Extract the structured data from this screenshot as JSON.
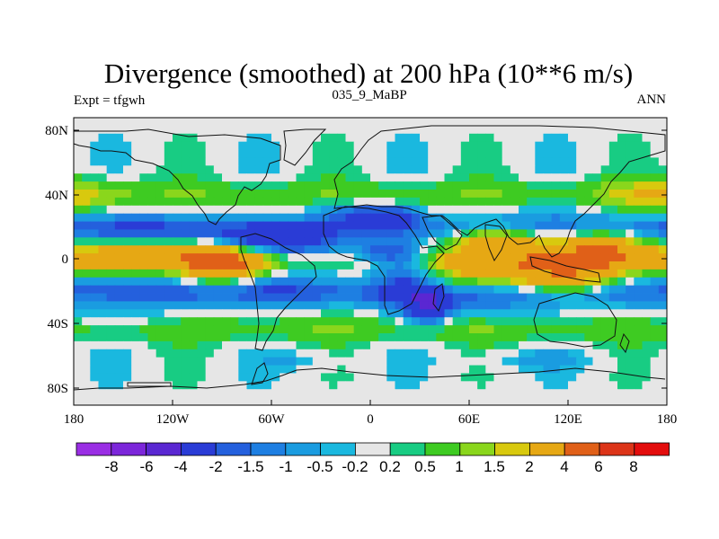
{
  "chart_data": {
    "type": "heatmap",
    "title": "Divergence (smoothed) at 200 hPa (10**6 m/s)",
    "left_label": "Expt = tfgwh",
    "center_label": "035_9_MaBP",
    "right_label": "ANN",
    "x_ticks": [
      "180",
      "120W",
      "60W",
      "0",
      "60E",
      "120E",
      "180"
    ],
    "x_tick_values": [
      -180,
      -120,
      -60,
      0,
      60,
      120,
      180
    ],
    "y_ticks": [
      "80N",
      "40N",
      "0",
      "40S",
      "80S"
    ],
    "y_tick_values": [
      80,
      40,
      0,
      -40,
      -80
    ],
    "xlim": [
      -180,
      180
    ],
    "ylim": [
      -90,
      90
    ],
    "colorbar": {
      "labels": [
        "-8",
        "-6",
        "-4",
        "-2",
        "-1.5",
        "-1",
        "-0.5",
        "-0.2",
        "0.2",
        "0.5",
        "1",
        "1.5",
        "2",
        "4",
        "6",
        "8"
      ],
      "levels": [
        -8,
        -6,
        -4,
        -2,
        -1.5,
        -1,
        -0.5,
        -0.2,
        0.2,
        0.5,
        1,
        1.5,
        2,
        4,
        6,
        8
      ],
      "colors": [
        "#9A2EE4",
        "#7C26DA",
        "#5A27D2",
        "#2A3CD6",
        "#2460DD",
        "#1E7FE2",
        "#1A9CE0",
        "#1AB8DF",
        "#E6E6E6",
        "#18CC83",
        "#3ECB22",
        "#8AD61C",
        "#D8C90E",
        "#E6A814",
        "#E06018",
        "#DC3418",
        "#E30D0D"
      ]
    },
    "anomalies": [
      {
        "lon": -65,
        "lat": 12,
        "value": -3.5,
        "rx": 35,
        "ry": 10
      },
      {
        "lon": -90,
        "lat": 0,
        "value": 5.0,
        "rx": 30,
        "ry": 12
      },
      {
        "lon": -140,
        "lat": 5,
        "value": 2.0,
        "rx": 45,
        "ry": 10
      },
      {
        "lon": -150,
        "lat": 22,
        "value": -1.2,
        "rx": 40,
        "ry": 12
      },
      {
        "lon": -140,
        "lat": -15,
        "value": -0.8,
        "rx": 50,
        "ry": 10
      },
      {
        "lon": -60,
        "lat": -12,
        "value": -1.5,
        "rx": 25,
        "ry": 15
      },
      {
        "lon": -15,
        "lat": 30,
        "value": -1.2,
        "rx": 25,
        "ry": 8
      },
      {
        "lon": 10,
        "lat": 28,
        "value": -3.0,
        "rx": 20,
        "ry": 6
      },
      {
        "lon": 10,
        "lat": 5,
        "value": -1.8,
        "rx": 20,
        "ry": 8
      },
      {
        "lon": 20,
        "lat": -10,
        "value": -2.0,
        "rx": 18,
        "ry": 20
      },
      {
        "lon": 35,
        "lat": -28,
        "value": -3.5,
        "rx": 12,
        "ry": 10
      },
      {
        "lon": 75,
        "lat": 12,
        "value": 3.5,
        "rx": 25,
        "ry": 10
      },
      {
        "lon": 70,
        "lat": -5,
        "value": 2.5,
        "rx": 30,
        "ry": 12
      },
      {
        "lon": 120,
        "lat": -5,
        "value": 3.5,
        "rx": 30,
        "ry": 15
      },
      {
        "lon": 145,
        "lat": 10,
        "value": 3.0,
        "rx": 25,
        "ry": 10
      },
      {
        "lon": 165,
        "lat": 0,
        "value": 1.5,
        "rx": 30,
        "ry": 8
      },
      {
        "lon": -170,
        "lat": 40,
        "value": 0.8,
        "rx": 25,
        "ry": 12
      },
      {
        "lon": 165,
        "lat": 40,
        "value": 0.8,
        "rx": 25,
        "ry": 12
      },
      {
        "lon": -150,
        "lat": -35,
        "value": -0.6,
        "rx": 50,
        "ry": 10
      },
      {
        "lon": 50,
        "lat": -28,
        "value": -0.7,
        "rx": 40,
        "ry": 8
      },
      {
        "lon": 110,
        "lat": 28,
        "value": -0.8,
        "rx": 40,
        "ry": 8
      },
      {
        "lon": 100,
        "lat": -30,
        "value": -0.6,
        "rx": 40,
        "ry": 10
      },
      {
        "lon": -40,
        "lat": -62,
        "value": -0.5,
        "rx": 25,
        "ry": 6
      },
      {
        "lon": 100,
        "lat": -62,
        "value": -0.5,
        "rx": 40,
        "ry": 6
      }
    ]
  }
}
